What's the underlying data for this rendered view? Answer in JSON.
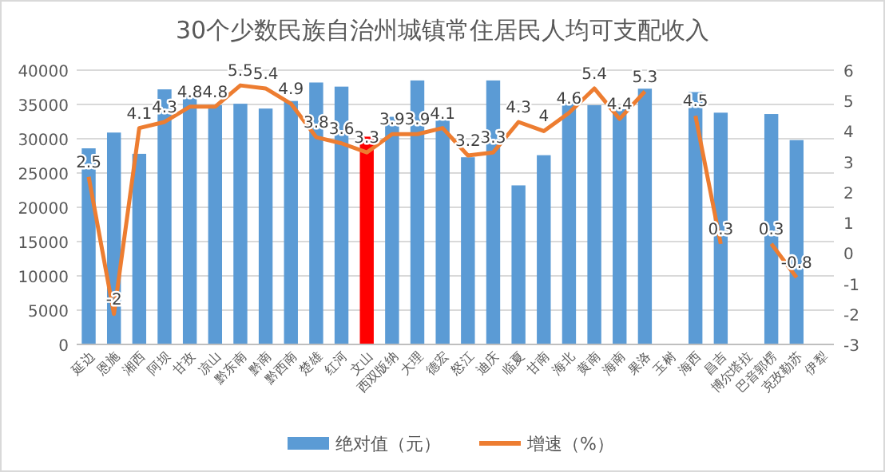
{
  "chart_data": {
    "type": "bar",
    "title": "30个少数民族自治州城镇常住居民人均可支配收入",
    "categories": [
      "延边",
      "恩施",
      "湘西",
      "阿坝",
      "甘孜",
      "凉山",
      "黔东南",
      "黔南",
      "黔西南",
      "楚雄",
      "红河",
      "文山",
      "西双版纳",
      "大理",
      "德宏",
      "怒江",
      "迪庆",
      "临夏",
      "甘南",
      "海北",
      "黄南",
      "海南",
      "果洛",
      "玉树",
      "海西",
      "昌吉",
      "博尔塔拉",
      "巴音郭楞",
      "克孜勒苏",
      "伊犁"
    ],
    "series": [
      {
        "name": "绝对值（元）",
        "color": "#5b9bd5",
        "colors": [
          "#5b9bd5",
          "#5b9bd5",
          "#5b9bd5",
          "#5b9bd5",
          "#5b9bd5",
          "#5b9bd5",
          "#5b9bd5",
          "#5b9bd5",
          "#5b9bd5",
          "#5b9bd5",
          "#5b9bd5",
          "#ff0000",
          "#5b9bd5",
          "#5b9bd5",
          "#5b9bd5",
          "#5b9bd5",
          "#5b9bd5",
          "#5b9bd5",
          "#5b9bd5",
          "#5b9bd5",
          "#5b9bd5",
          "#5b9bd5",
          "#5b9bd5",
          null,
          "#5b9bd5",
          "#5b9bd5",
          null,
          "#5b9bd5",
          "#5b9bd5",
          null
        ],
        "values": [
          28600,
          30900,
          27800,
          37200,
          36600,
          34900,
          35100,
          34400,
          35500,
          38200,
          37600,
          30300,
          33200,
          38500,
          32700,
          27300,
          38500,
          23200,
          27600,
          35300,
          34900,
          34300,
          37300,
          null,
          36800,
          33800,
          null,
          33600,
          29800,
          null
        ]
      },
      {
        "name": "增速（%）",
        "type": "line",
        "axis": "y2",
        "color": "#ed7d31",
        "values": [
          2.5,
          -2,
          4.1,
          4.3,
          4.8,
          4.8,
          5.5,
          5.4,
          4.9,
          3.8,
          3.6,
          3.3,
          3.9,
          3.9,
          4.1,
          3.2,
          3.3,
          4.3,
          4,
          4.6,
          5.4,
          4.4,
          5.3,
          null,
          4.5,
          0.3,
          null,
          0.3,
          -0.8,
          null
        ],
        "value_labels": [
          "2.5",
          "-2",
          "4.1",
          "4.3",
          "4.8",
          "4.8",
          "5.5",
          "5.4",
          "4.9",
          "3.8",
          "3.6",
          "3.3",
          "3.9",
          "3.9",
          "4.1",
          "3.2",
          "3.3",
          "4.3",
          "4",
          "4.6",
          "5.4",
          "4.4",
          "5.3",
          null,
          "4.5",
          "0.3",
          null,
          "0.3",
          "-0.8",
          null
        ]
      }
    ],
    "ylim": [
      0,
      40000
    ],
    "yticks": [
      0,
      5000,
      10000,
      15000,
      20000,
      25000,
      30000,
      35000,
      40000
    ],
    "y2lim": [
      -3,
      6
    ],
    "y2ticks": [
      -3,
      -2,
      -1,
      0,
      1,
      2,
      3,
      4,
      5,
      6
    ],
    "grid": "y",
    "legend": "bottom",
    "marker": "none",
    "line_style": "solid"
  }
}
